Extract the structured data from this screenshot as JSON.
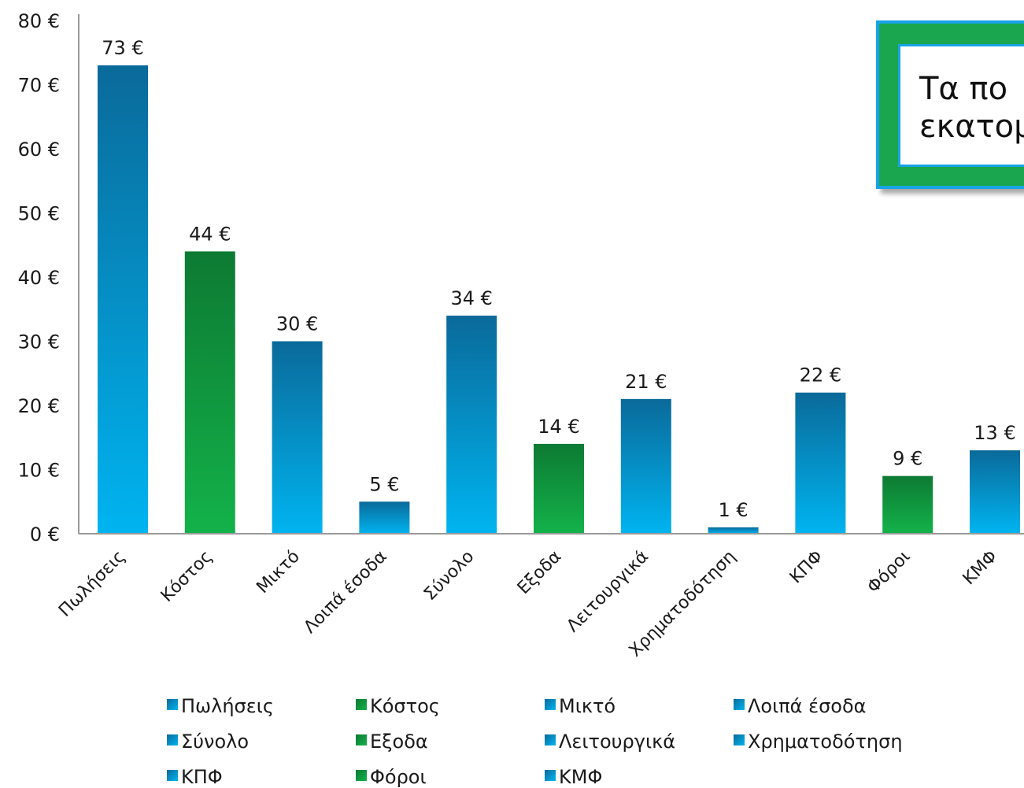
{
  "chart_data": {
    "type": "bar",
    "categories": [
      "Πωλήσεις",
      "Κόστος",
      "Μικτό",
      "Λοιπά έσοδα",
      "Σύνολο",
      "Εξοδα",
      "Λειτουργικά",
      "Χρηματοδότηση",
      "ΚΠΦ",
      "Φόροι",
      "ΚΜΦ"
    ],
    "values": [
      73,
      44,
      30,
      5,
      34,
      14,
      21,
      1,
      22,
      9,
      13
    ],
    "value_labels": [
      "73 €",
      "44 €",
      "30 €",
      "5 €",
      "34 €",
      "14 €",
      "21 €",
      "1 €",
      "22 €",
      "9 €",
      "13 €"
    ],
    "bar_colors": [
      "blue",
      "green",
      "blue",
      "blue",
      "blue",
      "green",
      "blue",
      "blue",
      "blue",
      "green",
      "blue"
    ],
    "ylim": [
      0,
      80
    ],
    "yticks": [
      0,
      10,
      20,
      30,
      40,
      50,
      60,
      70,
      80
    ],
    "ytick_labels": [
      "0 €",
      "10 €",
      "20 €",
      "30 €",
      "40 €",
      "50 €",
      "60 €",
      "70 €",
      "80 €"
    ],
    "title": "",
    "xlabel": "",
    "ylabel": "",
    "grid": false,
    "legend_placement": "bottom",
    "legend": [
      "Πωλήσεις",
      "Κόστος",
      "Μικτό",
      "Λοιπά έσοδα",
      "Σύνολο",
      "Εξοδα",
      "Λειτουργικά",
      "Χρηματοδότηση",
      "ΚΠΦ",
      "Φόροι",
      "ΚΜΦ"
    ]
  },
  "colors": {
    "blue_light": "#00b4f0",
    "blue_dark": "#0a6a9a",
    "green_light": "#13b24a",
    "green_dark": "#0d7a33",
    "axis": "#9a9a9a",
    "callout_frame": "#1aa64e",
    "callout_border": "#18a3e6"
  },
  "callout": {
    "text_line1": "Τα πο",
    "text_line2": "εκατομ"
  }
}
